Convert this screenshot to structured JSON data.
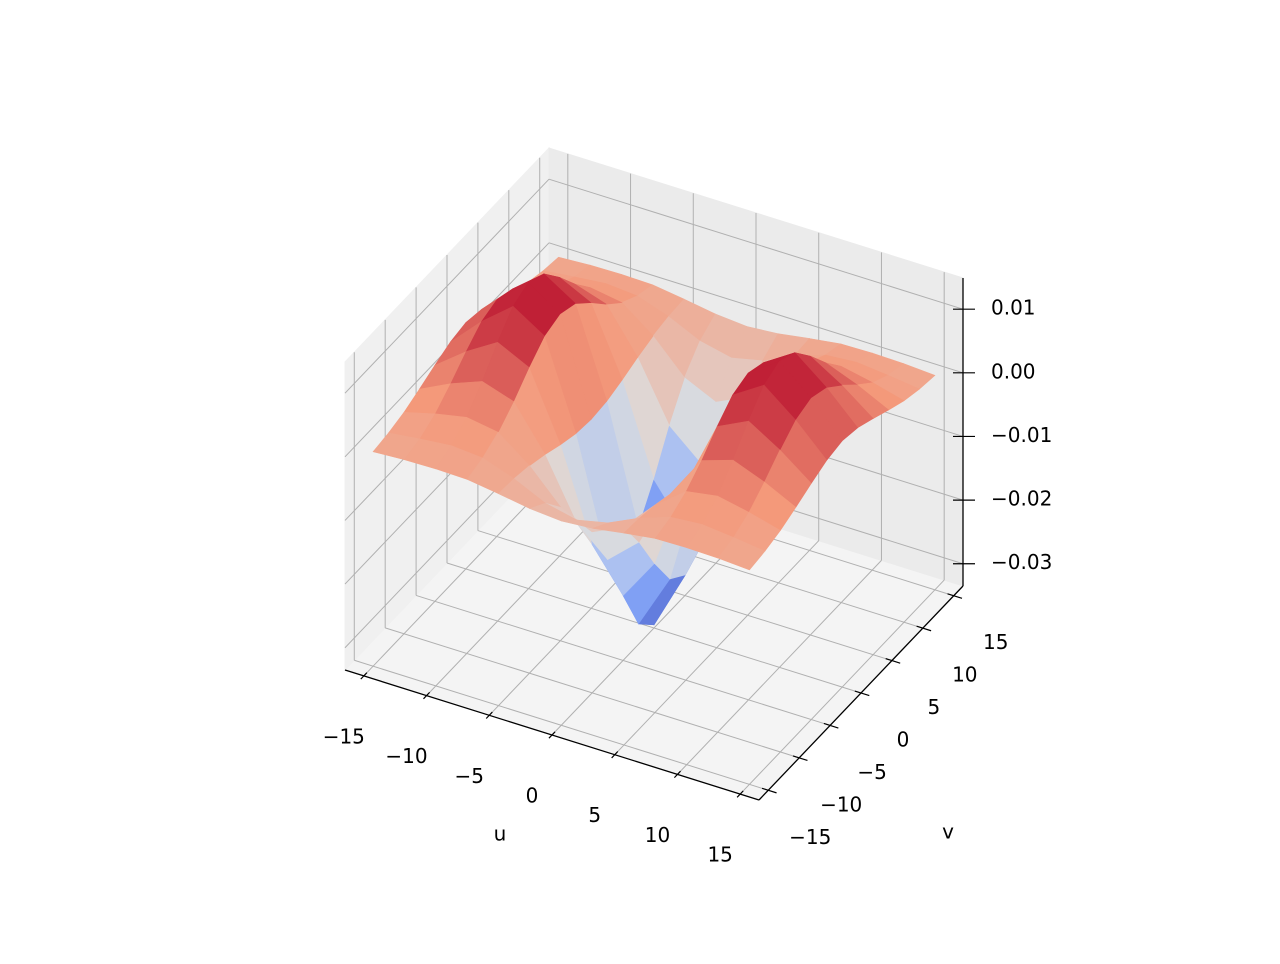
{
  "chart_data": {
    "type": "surface",
    "xlabel": "u",
    "ylabel": "v",
    "colormap": "coolwarm",
    "grid": true,
    "x": [
      -15,
      -12.5,
      -10,
      -7.5,
      -5,
      -2.5,
      0,
      2.5,
      5,
      7.5,
      10,
      12.5,
      15
    ],
    "y": [
      -15,
      -12.5,
      -10,
      -7.5,
      -5,
      -2.5,
      0,
      2.5,
      5,
      7.5,
      10,
      12.5,
      15
    ],
    "z": [
      [
        0.0002,
        0.0005,
        0.0006,
        0.0005,
        -0.0002,
        -0.001,
        -0.0014,
        -0.001,
        -0.0002,
        0.0005,
        0.0006,
        0.0005,
        0.0002
      ],
      [
        0.0006,
        0.0012,
        0.0017,
        0.0013,
        -0.0004,
        -0.0027,
        -0.0038,
        -0.0027,
        -0.0004,
        0.0013,
        0.0017,
        0.0012,
        0.0006
      ],
      [
        0.0013,
        0.0026,
        0.0036,
        0.0028,
        -0.0009,
        -0.0059,
        -0.0082,
        -0.0059,
        -0.0009,
        0.0028,
        0.0036,
        0.0026,
        0.0013
      ],
      [
        0.0024,
        0.0048,
        0.0067,
        0.0051,
        -0.0017,
        -0.0108,
        -0.0151,
        -0.0108,
        -0.0017,
        0.0051,
        0.0067,
        0.0048,
        0.0024
      ],
      [
        0.0036,
        0.0073,
        0.0103,
        0.0079,
        -0.0027,
        -0.0167,
        -0.0233,
        -0.0167,
        -0.0027,
        0.0079,
        0.0103,
        0.0073,
        0.0036
      ],
      [
        0.0047,
        0.0095,
        0.0134,
        0.0103,
        -0.0035,
        -0.0217,
        -0.0303,
        -0.0217,
        -0.0035,
        0.0103,
        0.0134,
        0.0095,
        0.0047
      ],
      [
        0.0052,
        0.0104,
        0.0146,
        0.0112,
        -0.0038,
        -0.0236,
        -0.033,
        -0.0236,
        -0.0038,
        0.0112,
        0.0146,
        0.0104,
        0.0052
      ],
      [
        0.0047,
        0.0095,
        0.0134,
        0.0103,
        -0.0035,
        -0.0217,
        -0.0303,
        -0.0217,
        -0.0035,
        0.0103,
        0.0134,
        0.0095,
        0.0047
      ],
      [
        0.0036,
        0.0073,
        0.0103,
        0.0079,
        -0.0027,
        -0.0167,
        -0.0233,
        -0.0167,
        -0.0027,
        0.0079,
        0.0103,
        0.0073,
        0.0036
      ],
      [
        0.0024,
        0.0048,
        0.0067,
        0.0051,
        -0.0017,
        -0.0108,
        -0.0151,
        -0.0108,
        -0.0017,
        0.0051,
        0.0067,
        0.0048,
        0.0024
      ],
      [
        0.0013,
        0.0026,
        0.0036,
        0.0028,
        -0.0009,
        -0.0059,
        -0.0082,
        -0.0059,
        -0.0009,
        0.0028,
        0.0036,
        0.0026,
        0.0013
      ],
      [
        0.0006,
        0.0012,
        0.0017,
        0.0013,
        -0.0004,
        -0.0027,
        -0.0038,
        -0.0027,
        -0.0004,
        0.0013,
        0.0017,
        0.0012,
        0.0006
      ],
      [
        0.0002,
        0.0005,
        0.0006,
        0.0005,
        -0.0002,
        -0.001,
        -0.0014,
        -0.001,
        -0.0002,
        0.0005,
        0.0006,
        0.0005,
        0.0002
      ]
    ],
    "xlim": [
      -16.5,
      16.5
    ],
    "ylim": [
      -16.5,
      16.5
    ],
    "zlim": [
      -0.0335,
      0.0149
    ],
    "xticks": [
      {
        "value": -15,
        "label": "−15"
      },
      {
        "value": -10,
        "label": "−10"
      },
      {
        "value": -5,
        "label": "−5"
      },
      0,
      5,
      10,
      15
    ],
    "yticks": [
      {
        "value": -15,
        "label": "−15"
      },
      {
        "value": -10,
        "label": "−10"
      },
      {
        "value": -5,
        "label": "−5"
      },
      0,
      5,
      10,
      15
    ],
    "zticks": [
      {
        "value": -0.03,
        "label": "−0.03"
      },
      {
        "value": -0.02,
        "label": "−0.02"
      },
      {
        "value": -0.01,
        "label": "−0.01"
      },
      {
        "value": 0,
        "label": "0.00"
      },
      {
        "value": 0.01,
        "label": "0.01"
      }
    ]
  }
}
